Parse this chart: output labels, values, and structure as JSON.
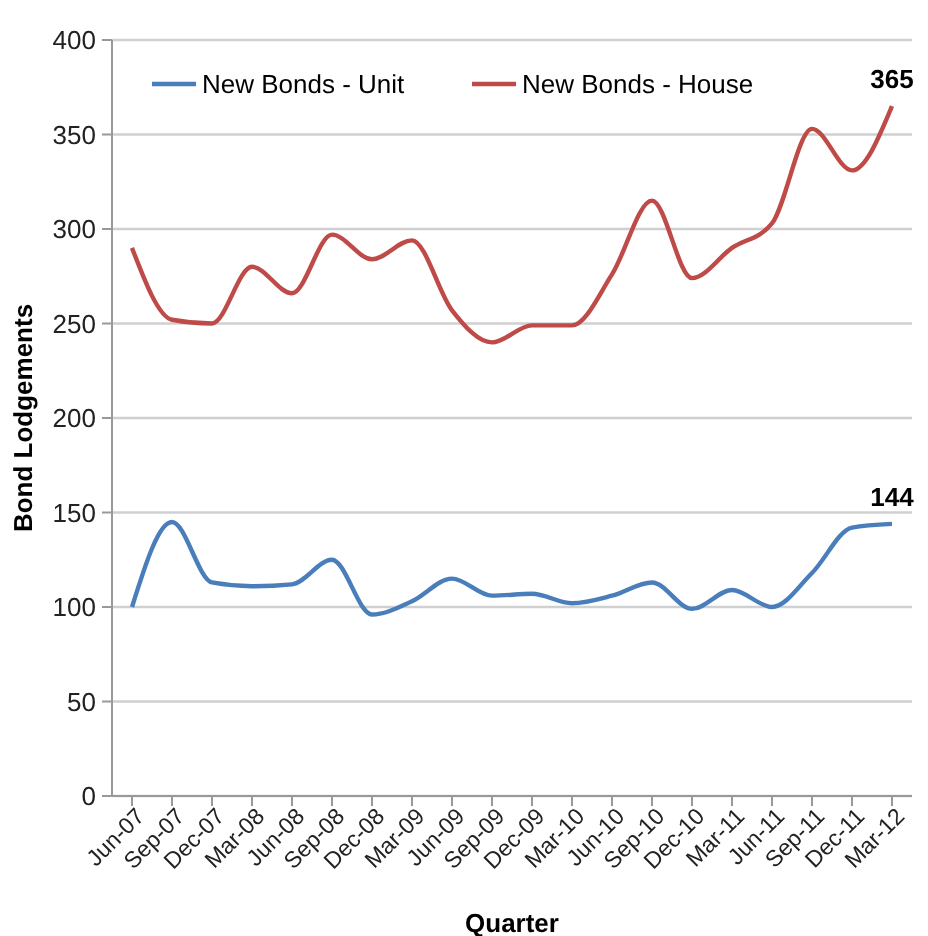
{
  "chart_data": {
    "type": "line",
    "xlabel": "Quarter",
    "ylabel": "Bond Lodgements",
    "categories": [
      "Jun-07",
      "Sep-07",
      "Dec-07",
      "Mar-08",
      "Jun-08",
      "Sep-08",
      "Dec-08",
      "Mar-09",
      "Jun-09",
      "Sep-09",
      "Dec-09",
      "Mar-10",
      "Jun-10",
      "Sep-10",
      "Dec-10",
      "Mar-11",
      "Jun-11",
      "Sep-11",
      "Dec-11",
      "Mar-12"
    ],
    "series": [
      {
        "name": "New Bonds - Unit",
        "color": "#4a7ebb",
        "values": [
          100,
          145,
          113,
          111,
          112,
          125,
          96,
          103,
          115,
          106,
          107,
          102,
          106,
          113,
          99,
          109,
          100,
          118,
          142,
          144
        ],
        "value_labels": [
          null,
          null,
          null,
          null,
          null,
          null,
          null,
          null,
          null,
          null,
          null,
          null,
          null,
          null,
          null,
          null,
          null,
          null,
          null,
          "144"
        ]
      },
      {
        "name": "New Bonds - House",
        "color": "#be4b48",
        "values": [
          290,
          252,
          250,
          280,
          266,
          297,
          284,
          294,
          257,
          240,
          249,
          249,
          276,
          315,
          274,
          290,
          303,
          353,
          331,
          365
        ],
        "value_labels": [
          null,
          null,
          null,
          null,
          null,
          null,
          null,
          null,
          null,
          null,
          null,
          null,
          null,
          null,
          null,
          null,
          null,
          null,
          null,
          "365"
        ]
      }
    ],
    "ylim": [
      0,
      400
    ],
    "yticks": [
      0,
      50,
      100,
      150,
      200,
      250,
      300,
      350,
      400
    ],
    "grid": "y",
    "legend": "top left",
    "marker": "none",
    "line_style": "solid"
  }
}
